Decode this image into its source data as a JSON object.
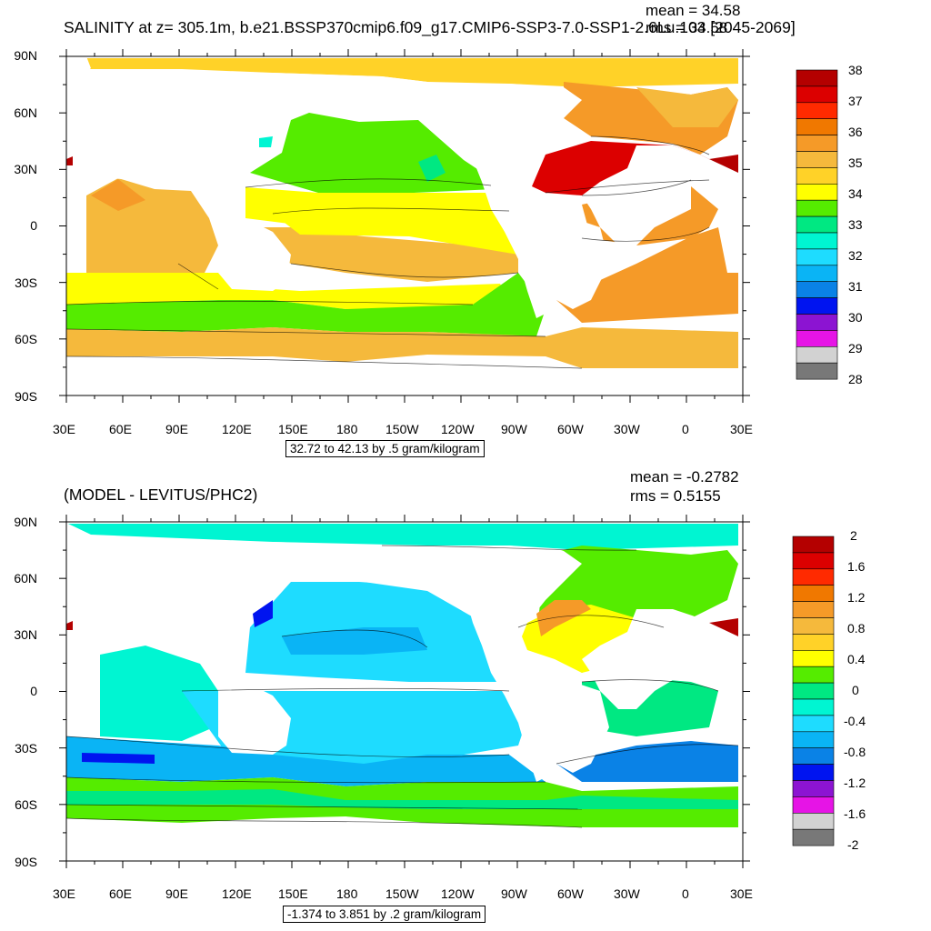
{
  "panels": [
    {
      "title": "SALINITY at z= 305.1m, b.e21.BSSP370cmip6.f09_g17.CMIP6-SSP3-7.0-SSP1-2.6Lu.103 [2045-2069]",
      "mean_text": "mean = 34.58",
      "rms_text": "rms = 34.58",
      "contour_info": "32.72 to 42.13 by .5 gram/kilogram",
      "colorbar_labels": [
        "38",
        "37",
        "36",
        "35",
        "34",
        "33",
        "32",
        "31",
        "30",
        "29",
        "28"
      ],
      "colorbar_colors": [
        "#b40000",
        "#dc0000",
        "#ff2a00",
        "#f07800",
        "#f59a28",
        "#f5b93c",
        "#ffd228",
        "#ffff00",
        "#55ec00",
        "#00e882",
        "#00f5d2",
        "#1edcff",
        "#0ab4f5",
        "#0a82e6",
        "#0014f0",
        "#8c14d2",
        "#e614e6",
        "#d2d2d2",
        "#787878"
      ],
      "x_ticks": [
        "30E",
        "60E",
        "90E",
        "120E",
        "150E",
        "180",
        "150W",
        "120W",
        "90W",
        "60W",
        "30W",
        "0",
        "30E"
      ],
      "y_ticks": [
        "90N",
        "60N",
        "30N",
        "0",
        "30S",
        "60S",
        "90S"
      ]
    },
    {
      "title": "(MODEL - LEVITUS/PHC2)",
      "mean_text": "mean = -0.2782",
      "rms_text": "rms = 0.5155",
      "contour_info": "-1.374 to 3.851 by .2 gram/kilogram",
      "colorbar_labels": [
        "2",
        "1.6",
        "1.2",
        "0.8",
        "0.4",
        "0",
        "-0.4",
        "-0.8",
        "-1.2",
        "-1.6",
        "-2"
      ],
      "colorbar_colors": [
        "#b40000",
        "#dc0000",
        "#ff2a00",
        "#f07800",
        "#f59a28",
        "#f5b93c",
        "#ffd228",
        "#ffff00",
        "#55ec00",
        "#00e882",
        "#00f5d2",
        "#1edcff",
        "#0ab4f5",
        "#0a82e6",
        "#0014f0",
        "#8c14d2",
        "#e614e6",
        "#d2d2d2",
        "#787878"
      ],
      "x_ticks": [
        "30E",
        "60E",
        "90E",
        "120E",
        "150E",
        "180",
        "150W",
        "120W",
        "90W",
        "60W",
        "30W",
        "0",
        "30E"
      ],
      "y_ticks": [
        "90N",
        "60N",
        "30N",
        "0",
        "30S",
        "60S",
        "90S"
      ]
    }
  ]
}
